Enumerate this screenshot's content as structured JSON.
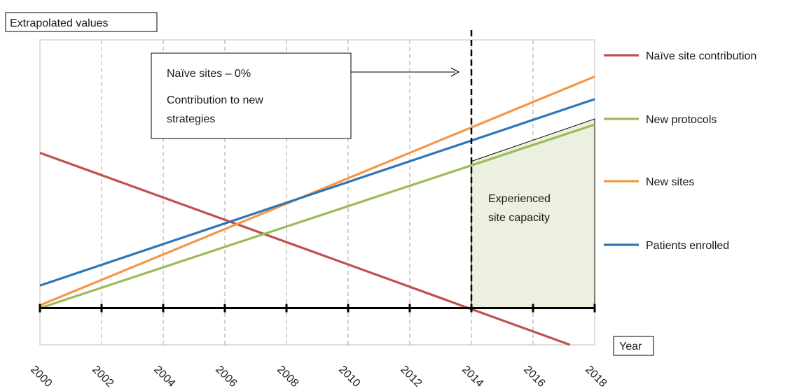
{
  "chart_data": {
    "type": "line",
    "ylabel": "Extrapolated values",
    "xlabel": "Year",
    "x_ticks": [
      "2000",
      "2002",
      "2004",
      "2006",
      "2008",
      "2010",
      "2012",
      "2014",
      "2016",
      "2018"
    ],
    "xlim": [
      2000,
      2018
    ],
    "ylim": [
      -0.13,
      0.95
    ],
    "grid": "vertical dashed",
    "legend_position": "right",
    "series": [
      {
        "name": "Naïve site contribution",
        "color": "#c0504d",
        "x": [
          2000,
          2017.2
        ],
        "y": [
          0.55,
          -0.13
        ]
      },
      {
        "name": "New protocols",
        "color": "#9bbb59",
        "x": [
          2000,
          2018
        ],
        "y": [
          0.0,
          0.65
        ]
      },
      {
        "name": "New sites",
        "color": "#f79646",
        "x": [
          2000,
          2018
        ],
        "y": [
          0.01,
          0.82
        ]
      },
      {
        "name": "Patients enrolled",
        "color": "#2e75b6",
        "x": [
          2000,
          2018
        ],
        "y": [
          0.08,
          0.74
        ]
      }
    ],
    "marker_line": {
      "x": 2014,
      "style": "dashed"
    },
    "shaded_region": {
      "label_lines": [
        "Experienced",
        "site capacity"
      ],
      "x": [
        2014,
        2018
      ],
      "top_y": [
        0.52,
        0.67
      ],
      "color": "#ebf1de"
    },
    "annotation": {
      "lines": [
        "Naïve sites – 0%",
        "Contribution to new",
        "strategies"
      ]
    }
  }
}
